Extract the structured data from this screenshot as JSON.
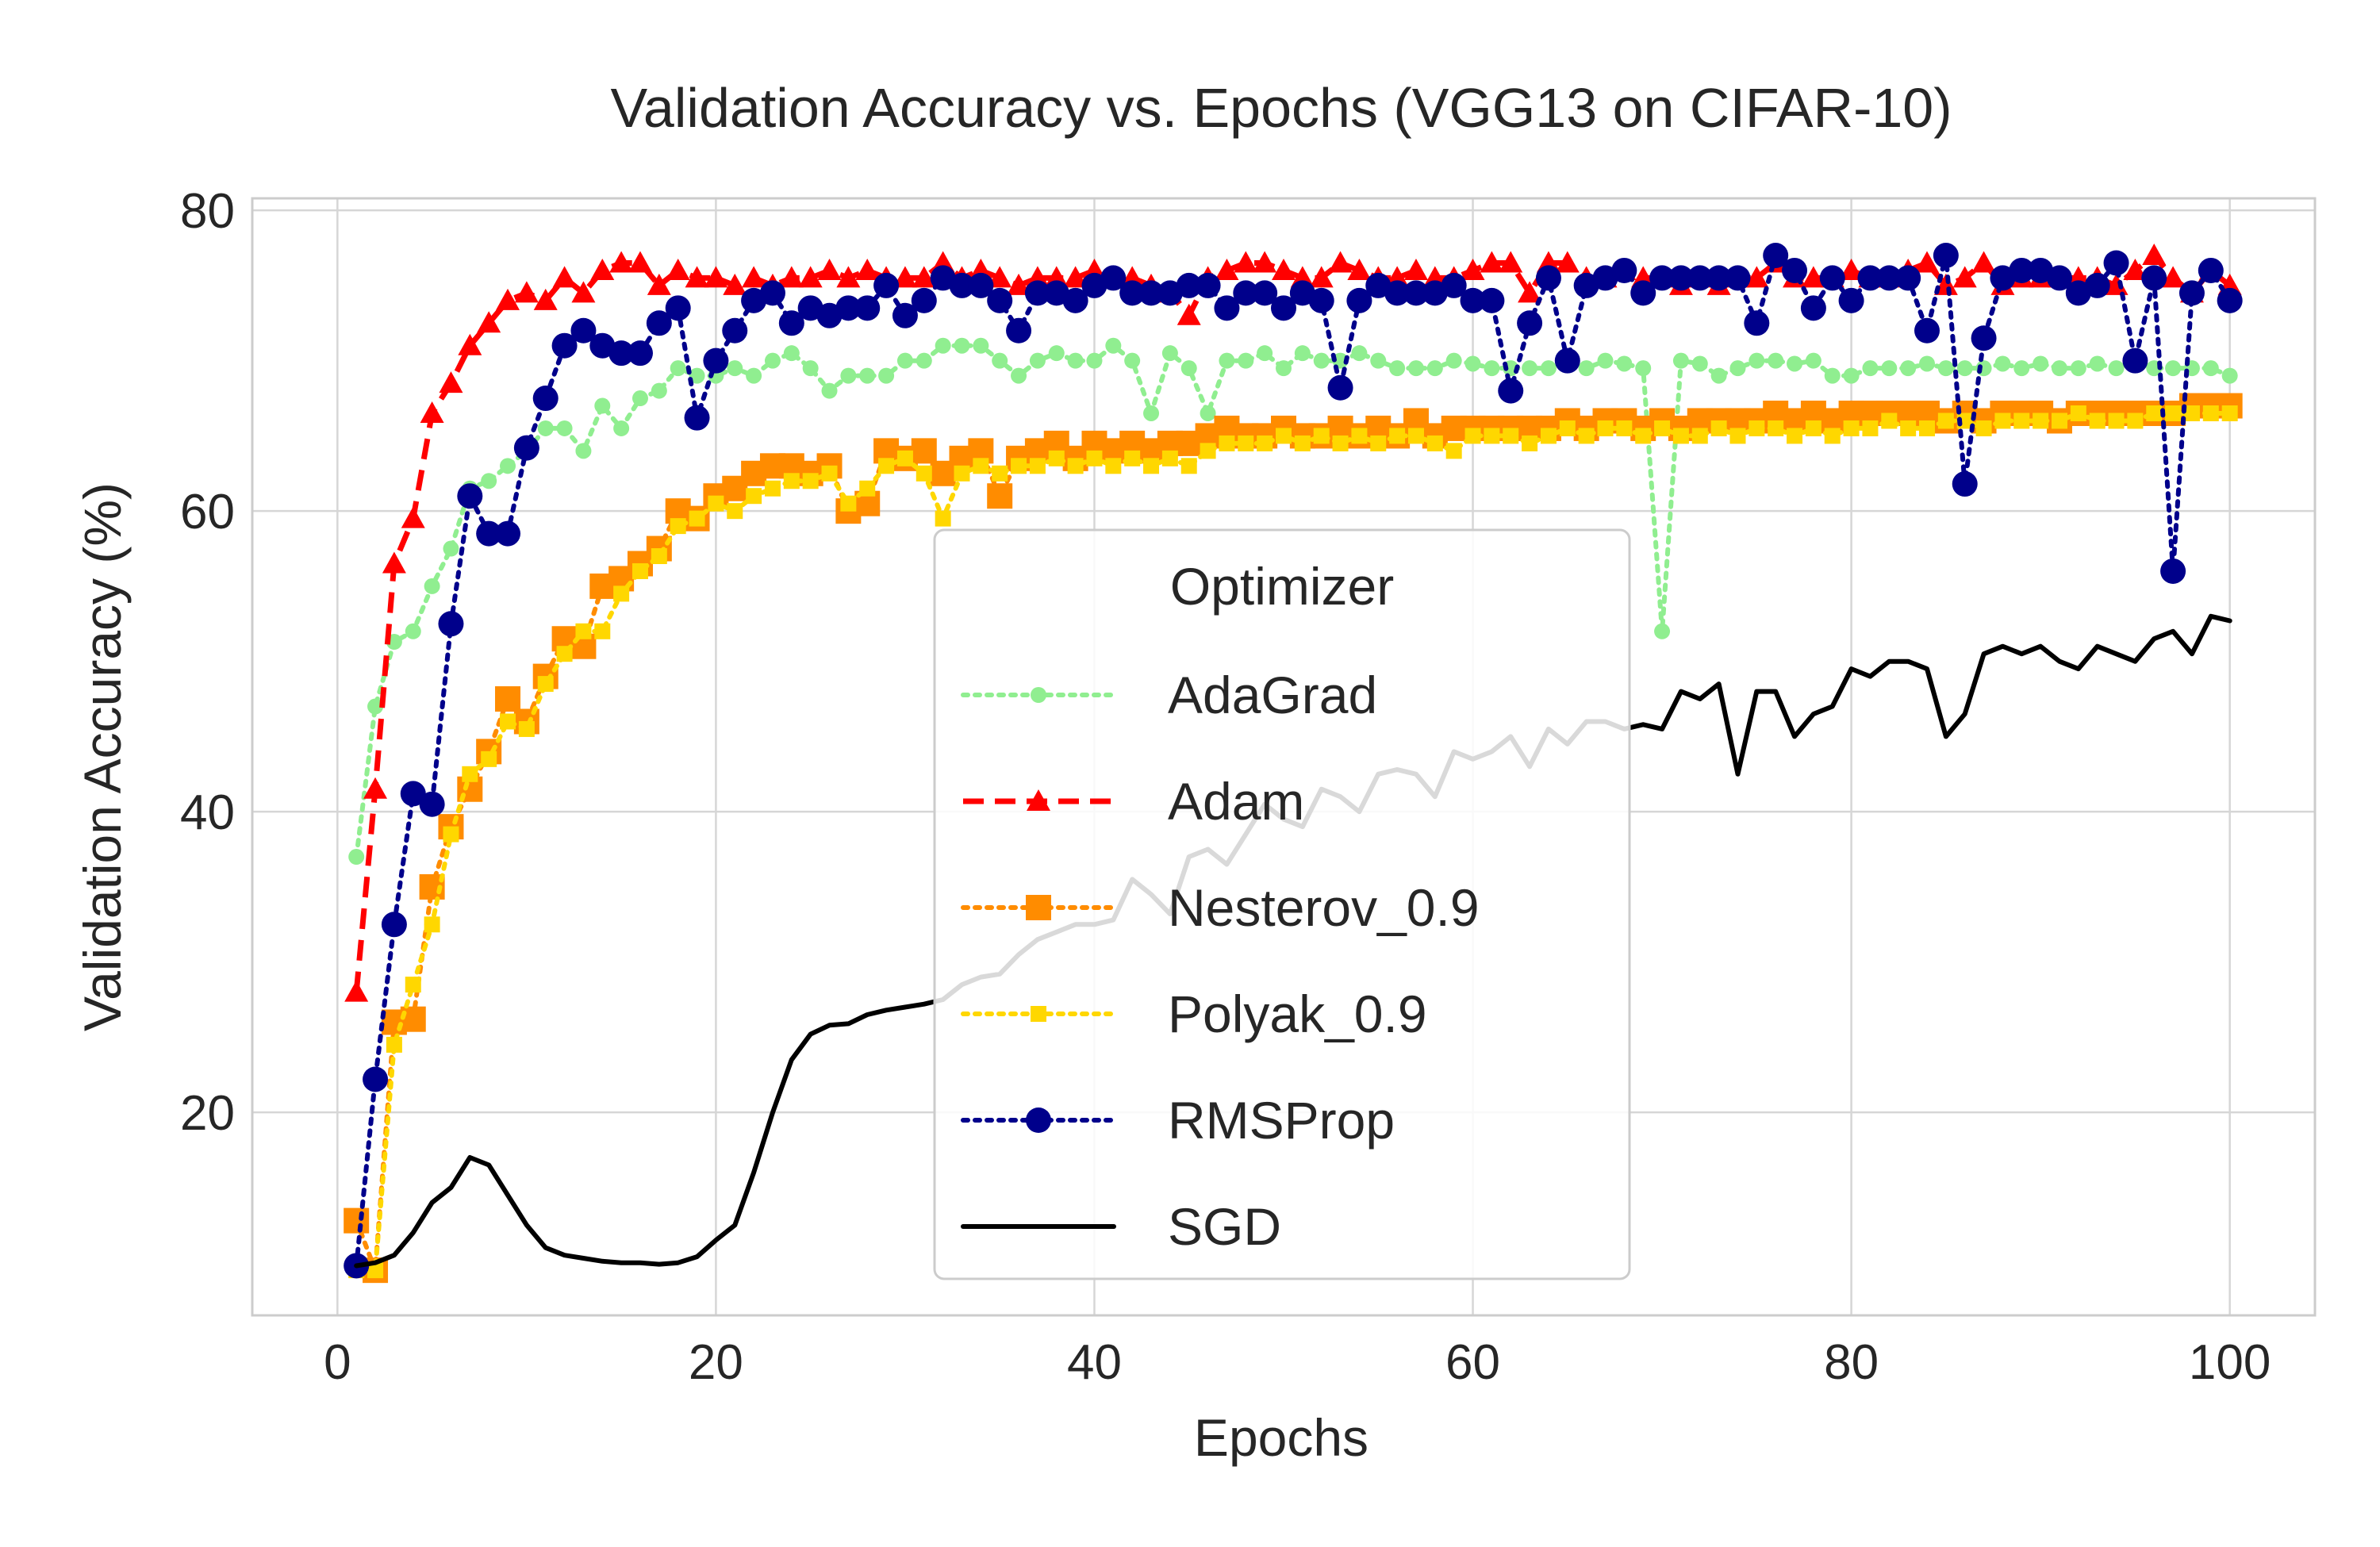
{
  "chart_data": {
    "type": "line",
    "title": "Validation Accuracy vs. Epochs (VGG13 on CIFAR-10)",
    "xlabel": "Epochs",
    "ylabel": "Validation Accuracy (%)",
    "xlim": [
      -4.5,
      104.5
    ],
    "ylim": [
      6.5,
      80.8
    ],
    "xticks": [
      0,
      20,
      40,
      60,
      80,
      100
    ],
    "yticks": [
      20,
      40,
      60,
      80
    ],
    "grid": true,
    "legend": {
      "title": "Optimizer",
      "placement": "center"
    },
    "series": [
      {
        "name": "AdaGrad",
        "color": "#90ee90",
        "linestyle": "dotted",
        "marker": "circle-small",
        "x": [
          1,
          2,
          3,
          4,
          5,
          6,
          7,
          8,
          9,
          10,
          11,
          12,
          13,
          14,
          15,
          16,
          17,
          18,
          19,
          20,
          21,
          22,
          23,
          24,
          25,
          26,
          27,
          28,
          29,
          30,
          31,
          32,
          33,
          34,
          35,
          36,
          37,
          38,
          39,
          40,
          41,
          42,
          43,
          44,
          45,
          46,
          47,
          48,
          49,
          50,
          51,
          52,
          53,
          54,
          55,
          56,
          57,
          58,
          59,
          60,
          61,
          62,
          63,
          64,
          65,
          66,
          67,
          68,
          69,
          70,
          71,
          72,
          73,
          74,
          75,
          76,
          77,
          78,
          79,
          80,
          81,
          82,
          83,
          84,
          85,
          86,
          87,
          88,
          89,
          90,
          91,
          92,
          93,
          94,
          95,
          96,
          97,
          98,
          99,
          100
        ],
        "values": [
          37.0,
          47.0,
          51.3,
          52.0,
          55.0,
          57.5,
          61.5,
          62.0,
          63.0,
          64.0,
          65.5,
          65.5,
          64.0,
          67.0,
          65.5,
          67.5,
          68.0,
          69.5,
          69.0,
          69.0,
          69.5,
          69.0,
          70.0,
          70.5,
          69.5,
          68.0,
          69.0,
          69.0,
          69.0,
          70.0,
          70.0,
          71.0,
          71.0,
          71.0,
          70.0,
          69.0,
          70.0,
          70.5,
          70.0,
          70.0,
          71.0,
          70.0,
          66.5,
          70.5,
          69.5,
          66.5,
          70.0,
          70.0,
          70.5,
          69.5,
          70.5,
          70.0,
          70.0,
          70.5,
          70.0,
          69.5,
          69.5,
          69.5,
          70.0,
          69.8,
          69.5,
          69.5,
          69.5,
          69.5,
          70.0,
          69.5,
          70.0,
          69.8,
          69.5,
          52.0,
          70.0,
          69.8,
          69.0,
          69.5,
          70.0,
          70.0,
          69.8,
          70.0,
          69.0,
          69.0,
          69.5,
          69.5,
          69.5,
          69.8,
          69.5,
          69.5,
          69.5,
          69.8,
          69.5,
          69.8,
          69.5,
          69.5,
          69.8,
          69.5,
          70.0,
          69.5,
          69.5,
          69.5,
          69.5,
          69.0
        ]
      },
      {
        "name": "Adam",
        "color": "#ff0000",
        "linestyle": "dashed",
        "marker": "triangle",
        "x": [
          1,
          2,
          3,
          4,
          5,
          6,
          7,
          8,
          9,
          10,
          11,
          12,
          13,
          14,
          15,
          16,
          17,
          18,
          19,
          20,
          21,
          22,
          23,
          24,
          25,
          26,
          27,
          28,
          29,
          30,
          31,
          32,
          33,
          34,
          35,
          36,
          37,
          38,
          39,
          40,
          41,
          42,
          43,
          44,
          45,
          46,
          47,
          48,
          49,
          50,
          51,
          52,
          53,
          54,
          55,
          56,
          57,
          58,
          59,
          60,
          61,
          62,
          63,
          64,
          65,
          66,
          67,
          68,
          69,
          70,
          71,
          72,
          73,
          74,
          75,
          76,
          77,
          78,
          79,
          80,
          81,
          82,
          83,
          84,
          85,
          86,
          87,
          88,
          89,
          90,
          91,
          92,
          93,
          94,
          95,
          96,
          97,
          98,
          99,
          100
        ],
        "values": [
          28.0,
          41.5,
          56.5,
          59.5,
          66.5,
          68.5,
          71.0,
          72.5,
          74.0,
          74.5,
          74.0,
          75.5,
          74.5,
          76.0,
          76.5,
          76.5,
          75.0,
          76.0,
          75.5,
          75.5,
          75.0,
          75.5,
          75.0,
          75.5,
          75.5,
          76.0,
          75.5,
          76.0,
          75.5,
          75.5,
          75.5,
          76.5,
          75.5,
          76.0,
          75.5,
          75.0,
          75.5,
          75.5,
          75.5,
          76.0,
          75.5,
          75.5,
          75.0,
          74.5,
          73.0,
          75.5,
          76.0,
          76.5,
          76.5,
          76.0,
          75.5,
          75.5,
          76.5,
          76.0,
          75.5,
          75.5,
          76.0,
          75.5,
          75.5,
          76.0,
          76.5,
          76.5,
          74.5,
          76.5,
          76.5,
          75.5,
          75.5,
          76.0,
          75.5,
          75.5,
          75.0,
          75.5,
          75.0,
          75.5,
          75.5,
          76.5,
          75.5,
          75.5,
          75.5,
          76.0,
          75.5,
          75.5,
          76.0,
          76.5,
          75.0,
          75.5,
          76.5,
          75.0,
          75.5,
          75.5,
          75.5,
          75.5,
          75.5,
          75.0,
          76.0,
          77.0,
          75.5,
          74.5,
          76.0,
          75.0
        ]
      },
      {
        "name": "Nesterov_0.9",
        "color": "#ff8c00",
        "linestyle": "dotted",
        "marker": "square",
        "x": [
          1,
          2,
          3,
          4,
          5,
          6,
          7,
          8,
          9,
          10,
          11,
          12,
          13,
          14,
          15,
          16,
          17,
          18,
          19,
          20,
          21,
          22,
          23,
          24,
          25,
          26,
          27,
          28,
          29,
          30,
          31,
          32,
          33,
          34,
          35,
          36,
          37,
          38,
          39,
          40,
          41,
          42,
          43,
          44,
          45,
          46,
          47,
          48,
          49,
          50,
          51,
          52,
          53,
          54,
          55,
          56,
          57,
          58,
          59,
          60,
          61,
          62,
          63,
          64,
          65,
          66,
          67,
          68,
          69,
          70,
          71,
          72,
          73,
          74,
          75,
          76,
          77,
          78,
          79,
          80,
          81,
          82,
          83,
          84,
          85,
          86,
          87,
          88,
          89,
          90,
          91,
          92,
          93,
          94,
          95,
          96,
          97,
          98,
          99,
          100
        ],
        "values": [
          12.8,
          9.5,
          26.0,
          26.2,
          35.0,
          39.0,
          41.5,
          44.0,
          47.5,
          46.0,
          49.0,
          51.5,
          51.0,
          55.0,
          55.5,
          56.5,
          57.5,
          60.0,
          59.5,
          61.0,
          61.5,
          62.5,
          63.0,
          63.0,
          62.5,
          63.0,
          60.0,
          60.5,
          64.0,
          63.5,
          64.0,
          62.5,
          63.5,
          64.0,
          61.0,
          63.5,
          64.0,
          64.5,
          63.5,
          64.5,
          64.0,
          64.5,
          64.0,
          64.5,
          64.5,
          65.0,
          65.5,
          65.0,
          65.0,
          65.5,
          65.0,
          65.0,
          65.5,
          65.0,
          65.5,
          65.0,
          66.0,
          65.0,
          65.5,
          65.5,
          65.5,
          65.5,
          65.5,
          65.5,
          66.0,
          65.5,
          66.0,
          66.0,
          65.5,
          66.0,
          65.5,
          66.0,
          66.0,
          66.0,
          66.0,
          66.5,
          66.0,
          66.5,
          66.0,
          66.5,
          66.5,
          66.5,
          66.5,
          66.5,
          66.0,
          66.5,
          66.0,
          66.5,
          66.5,
          66.5,
          66.0,
          66.5,
          66.5,
          66.5,
          66.5,
          66.5,
          66.5,
          67.0,
          67.0,
          67.0
        ]
      },
      {
        "name": "Polyak_0.9",
        "color": "#ffd700",
        "linestyle": "dotted",
        "marker": "square-small",
        "x": [
          1,
          2,
          3,
          4,
          5,
          6,
          7,
          8,
          9,
          10,
          11,
          12,
          13,
          14,
          15,
          16,
          17,
          18,
          19,
          20,
          21,
          22,
          23,
          24,
          25,
          26,
          27,
          28,
          29,
          30,
          31,
          32,
          33,
          34,
          35,
          36,
          37,
          38,
          39,
          40,
          41,
          42,
          43,
          44,
          45,
          46,
          47,
          48,
          49,
          50,
          51,
          52,
          53,
          54,
          55,
          56,
          57,
          58,
          59,
          60,
          61,
          62,
          63,
          64,
          65,
          66,
          67,
          68,
          69,
          70,
          71,
          72,
          73,
          74,
          75,
          76,
          77,
          78,
          79,
          80,
          81,
          82,
          83,
          84,
          85,
          86,
          87,
          88,
          89,
          90,
          91,
          92,
          93,
          94,
          95,
          96,
          97,
          98,
          99,
          100
        ],
        "values": [
          9.5,
          9.5,
          24.5,
          28.5,
          32.5,
          38.5,
          42.5,
          43.5,
          46.0,
          45.5,
          48.5,
          50.5,
          52.0,
          52.0,
          54.5,
          56.0,
          57.0,
          59.0,
          59.5,
          60.5,
          60.0,
          61.0,
          61.5,
          62.0,
          62.0,
          62.5,
          60.5,
          61.5,
          63.0,
          63.5,
          62.5,
          59.5,
          62.5,
          63.0,
          62.5,
          63.0,
          63.0,
          63.5,
          63.0,
          63.5,
          63.0,
          63.5,
          63.0,
          63.5,
          63.0,
          64.0,
          64.5,
          64.5,
          64.5,
          65.0,
          64.5,
          65.0,
          64.5,
          65.0,
          64.5,
          65.0,
          65.0,
          64.5,
          64.0,
          65.0,
          65.0,
          65.0,
          64.5,
          65.0,
          65.5,
          65.0,
          65.5,
          65.5,
          65.0,
          65.5,
          65.0,
          65.0,
          65.5,
          65.0,
          65.5,
          65.5,
          65.0,
          65.5,
          65.0,
          65.5,
          65.5,
          66.0,
          65.5,
          65.5,
          66.0,
          66.0,
          65.5,
          66.0,
          66.0,
          66.0,
          66.0,
          66.5,
          66.0,
          66.0,
          66.0,
          66.5,
          66.5,
          66.5,
          66.5,
          66.5
        ]
      },
      {
        "name": "RMSProp",
        "color": "#00008b",
        "linestyle": "dotted",
        "marker": "circle",
        "x": [
          1,
          2,
          3,
          4,
          5,
          6,
          7,
          8,
          9,
          10,
          11,
          12,
          13,
          14,
          15,
          16,
          17,
          18,
          19,
          20,
          21,
          22,
          23,
          24,
          25,
          26,
          27,
          28,
          29,
          30,
          31,
          32,
          33,
          34,
          35,
          36,
          37,
          38,
          39,
          40,
          41,
          42,
          43,
          44,
          45,
          46,
          47,
          48,
          49,
          50,
          51,
          52,
          53,
          54,
          55,
          56,
          57,
          58,
          59,
          60,
          61,
          62,
          63,
          64,
          65,
          66,
          67,
          68,
          69,
          70,
          71,
          72,
          73,
          74,
          75,
          76,
          77,
          78,
          79,
          80,
          81,
          82,
          83,
          84,
          85,
          86,
          87,
          88,
          89,
          90,
          91,
          92,
          93,
          94,
          95,
          96,
          97,
          98,
          99,
          100
        ],
        "values": [
          9.8,
          22.2,
          32.5,
          41.2,
          40.5,
          52.5,
          61.0,
          58.5,
          58.5,
          64.2,
          67.5,
          71.0,
          72.0,
          71.0,
          70.5,
          70.5,
          72.5,
          73.5,
          66.2,
          70.0,
          72.0,
          74.0,
          74.5,
          72.5,
          73.5,
          73.0,
          73.5,
          73.5,
          75.0,
          73.0,
          74.0,
          75.5,
          75.0,
          75.0,
          74.0,
          72.0,
          74.5,
          74.5,
          74.0,
          75.0,
          75.5,
          74.5,
          74.5,
          74.5,
          75.0,
          75.0,
          73.5,
          74.5,
          74.5,
          73.5,
          74.5,
          74.0,
          68.2,
          74.0,
          75.0,
          74.5,
          74.5,
          74.5,
          75.0,
          74.0,
          74.0,
          68.0,
          72.5,
          75.5,
          70.0,
          75.0,
          75.5,
          76.0,
          74.5,
          75.5,
          75.5,
          75.5,
          75.5,
          75.5,
          72.5,
          77.0,
          76.0,
          73.5,
          75.5,
          74.0,
          75.5,
          75.5,
          75.5,
          72.0,
          77.0,
          61.8,
          71.5,
          75.5,
          76.0,
          76.0,
          75.5,
          74.5,
          75.0,
          76.5,
          70.0,
          75.5,
          56.0,
          74.5,
          76.0,
          74.0
        ]
      },
      {
        "name": "SGD",
        "color": "#000000",
        "linestyle": "solid",
        "marker": "none",
        "x": [
          1,
          2,
          3,
          4,
          5,
          6,
          7,
          8,
          9,
          10,
          11,
          12,
          13,
          14,
          15,
          16,
          17,
          18,
          19,
          20,
          21,
          22,
          23,
          24,
          25,
          26,
          27,
          28,
          29,
          30,
          31,
          32,
          33,
          34,
          35,
          36,
          37,
          38,
          39,
          40,
          41,
          42,
          43,
          44,
          45,
          46,
          47,
          48,
          49,
          50,
          51,
          52,
          53,
          54,
          55,
          56,
          57,
          58,
          59,
          60,
          61,
          62,
          63,
          64,
          65,
          66,
          67,
          68,
          69,
          70,
          71,
          72,
          73,
          74,
          75,
          76,
          77,
          78,
          79,
          80,
          81,
          82,
          83,
          84,
          85,
          86,
          87,
          88,
          89,
          90,
          91,
          92,
          93,
          94,
          95,
          96,
          97,
          98,
          99,
          100
        ],
        "values": [
          9.8,
          10.0,
          10.5,
          12.0,
          14.0,
          15.0,
          17.0,
          16.5,
          14.5,
          12.5,
          11.0,
          10.5,
          10.3,
          10.1,
          10.0,
          10.0,
          9.9,
          10.0,
          10.4,
          11.5,
          12.5,
          16.0,
          20.0,
          23.5,
          25.2,
          25.8,
          25.9,
          26.5,
          26.8,
          27.0,
          27.2,
          27.5,
          28.5,
          29.0,
          29.2,
          30.5,
          31.5,
          32.0,
          32.5,
          32.5,
          32.8,
          35.5,
          34.5,
          33.2,
          37.0,
          37.5,
          36.5,
          38.5,
          40.5,
          39.5,
          39.0,
          41.5,
          41.0,
          40.0,
          42.5,
          42.8,
          42.5,
          41.0,
          44.0,
          43.5,
          44.0,
          45.0,
          43.0,
          45.5,
          44.5,
          46.0,
          46.0,
          45.5,
          45.8,
          45.5,
          48.0,
          47.5,
          48.5,
          42.5,
          48.0,
          48.0,
          45.0,
          46.5,
          47.0,
          49.5,
          49.0,
          50.0,
          50.0,
          49.5,
          45.0,
          46.5,
          50.5,
          51.0,
          50.5,
          51.0,
          50.0,
          49.5,
          51.0,
          50.5,
          50.0,
          51.5,
          52.0,
          50.5,
          53.0,
          52.7
        ]
      }
    ]
  }
}
